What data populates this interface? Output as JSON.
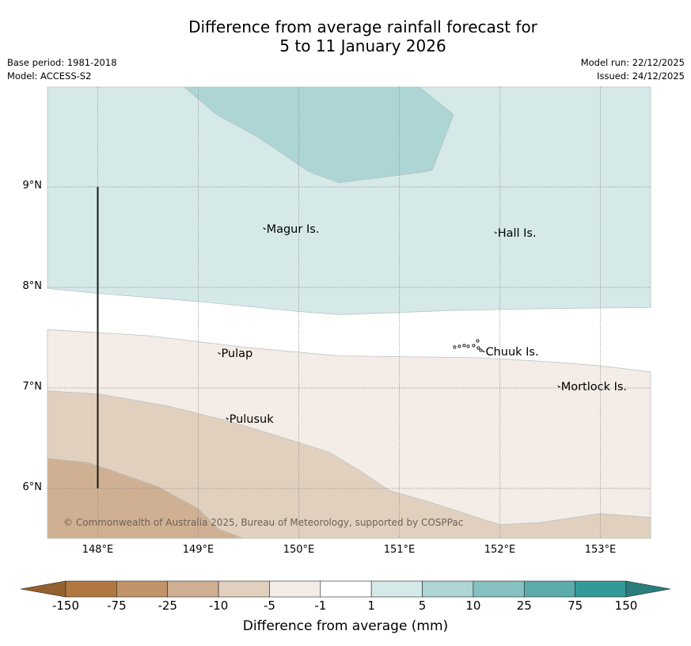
{
  "header": {
    "title_line1": "Difference from average rainfall forecast for",
    "title_line2": "5 to 11 January 2026",
    "base_period": "Base period: 1981-2018",
    "model": "Model: ACCESS-S2",
    "model_run": "Model run: 22/12/2025",
    "issued": "Issued: 24/12/2025"
  },
  "map": {
    "extent": {
      "lon_min": 147.5,
      "lon_max": 153.5,
      "lat_min": 5.5,
      "lat_max": 10.0
    },
    "lon_ticks": [
      {
        "value": 148,
        "label": "148°E"
      },
      {
        "value": 149,
        "label": "149°E"
      },
      {
        "value": 150,
        "label": "150°E"
      },
      {
        "value": 151,
        "label": "151°E"
      },
      {
        "value": 152,
        "label": "152°E"
      },
      {
        "value": 153,
        "label": "153°E"
      }
    ],
    "lat_ticks": [
      {
        "value": 9,
        "label": "9°N"
      },
      {
        "value": 8,
        "label": "8°N"
      },
      {
        "value": 7,
        "label": "7°N"
      },
      {
        "value": 6,
        "label": "6°N"
      }
    ],
    "scale_bar": {
      "lon": 148.0,
      "lat_from": 6.0,
      "lat_to": 9.0
    },
    "places": [
      {
        "name": "Magur Is.",
        "lon": 149.67,
        "lat": 8.57
      },
      {
        "name": "Hall Is.",
        "lon": 151.97,
        "lat": 8.53
      },
      {
        "name": "Pulap",
        "lon": 149.22,
        "lat": 7.33
      },
      {
        "name": "Chuuk Is.",
        "lon": 151.85,
        "lat": 7.35
      },
      {
        "name": "Mortlock Is.",
        "lon": 152.6,
        "lat": 7.0
      },
      {
        "name": "Pulusuk",
        "lon": 149.3,
        "lat": 6.68
      }
    ],
    "credit": "© Commonwealth of Australia 2025, Bureau of Meteorology, supported by COSPPac",
    "regions": [
      {
        "name": "region-1-to-5mm",
        "color": "#d5e9e8",
        "points": [
          [
            147.5,
            10.0
          ],
          [
            153.5,
            10.0
          ],
          [
            153.5,
            7.8
          ],
          [
            152.5,
            7.79
          ],
          [
            151.5,
            7.77
          ],
          [
            151.0,
            7.75
          ],
          [
            150.4,
            7.73
          ],
          [
            150.0,
            7.76
          ],
          [
            149.0,
            7.86
          ],
          [
            148.0,
            7.94
          ],
          [
            147.5,
            7.99
          ]
        ]
      },
      {
        "name": "region-5-to-10mm",
        "color": "#acd5d4",
        "points": [
          [
            148.86,
            10.0
          ],
          [
            151.2,
            10.0
          ],
          [
            151.54,
            9.72
          ],
          [
            151.33,
            9.17
          ],
          [
            151.27,
            9.15
          ],
          [
            150.4,
            9.04
          ],
          [
            150.1,
            9.15
          ],
          [
            149.6,
            9.49
          ],
          [
            149.18,
            9.72
          ]
        ]
      },
      {
        "name": "region-neg1-to-neg5mm",
        "color": "#f4ece6",
        "points": [
          [
            147.5,
            7.58
          ],
          [
            148.5,
            7.52
          ],
          [
            149.5,
            7.4
          ],
          [
            150.4,
            7.32
          ],
          [
            151.0,
            7.31
          ],
          [
            151.8,
            7.3
          ],
          [
            152.5,
            7.26
          ],
          [
            153.0,
            7.22
          ],
          [
            153.5,
            7.16
          ],
          [
            153.5,
            5.5
          ],
          [
            147.5,
            5.5
          ]
        ]
      },
      {
        "name": "region-neg5-to-neg10mm",
        "color": "#e2d0bf",
        "points": [
          [
            147.5,
            6.97
          ],
          [
            148.0,
            6.94
          ],
          [
            148.7,
            6.82
          ],
          [
            149.3,
            6.67
          ],
          [
            149.8,
            6.52
          ],
          [
            150.3,
            6.36
          ],
          [
            150.6,
            6.18
          ],
          [
            150.9,
            5.98
          ],
          [
            151.25,
            5.88
          ],
          [
            152.0,
            5.64
          ],
          [
            152.4,
            5.66
          ],
          [
            153.0,
            5.75
          ],
          [
            153.5,
            5.71
          ],
          [
            153.5,
            5.5
          ],
          [
            147.5,
            5.5
          ]
        ]
      },
      {
        "name": "region-neg10-to-neg25mm",
        "color": "#d0b092",
        "points": [
          [
            147.5,
            6.3
          ],
          [
            147.9,
            6.26
          ],
          [
            148.2,
            6.16
          ],
          [
            148.6,
            6.02
          ],
          [
            149.0,
            5.8
          ],
          [
            149.2,
            5.6
          ],
          [
            149.45,
            5.5
          ],
          [
            147.5,
            5.5
          ]
        ]
      }
    ]
  },
  "colorbar": {
    "title": "Difference from average (mm)",
    "boundaries": [
      "-150",
      "-75",
      "-25",
      "-10",
      "-5",
      "-1",
      "1",
      "5",
      "10",
      "25",
      "75",
      "150"
    ],
    "colors": [
      "#b07840",
      "#c09468",
      "#d0b092",
      "#e2d0bf",
      "#f4ece6",
      "#ffffff",
      "#d5e9e8",
      "#acd5d4",
      "#86c0c0",
      "#5bacaa",
      "#349a97"
    ],
    "extend_low_color": "#94602e",
    "extend_high_color": "#2a7d7a"
  }
}
